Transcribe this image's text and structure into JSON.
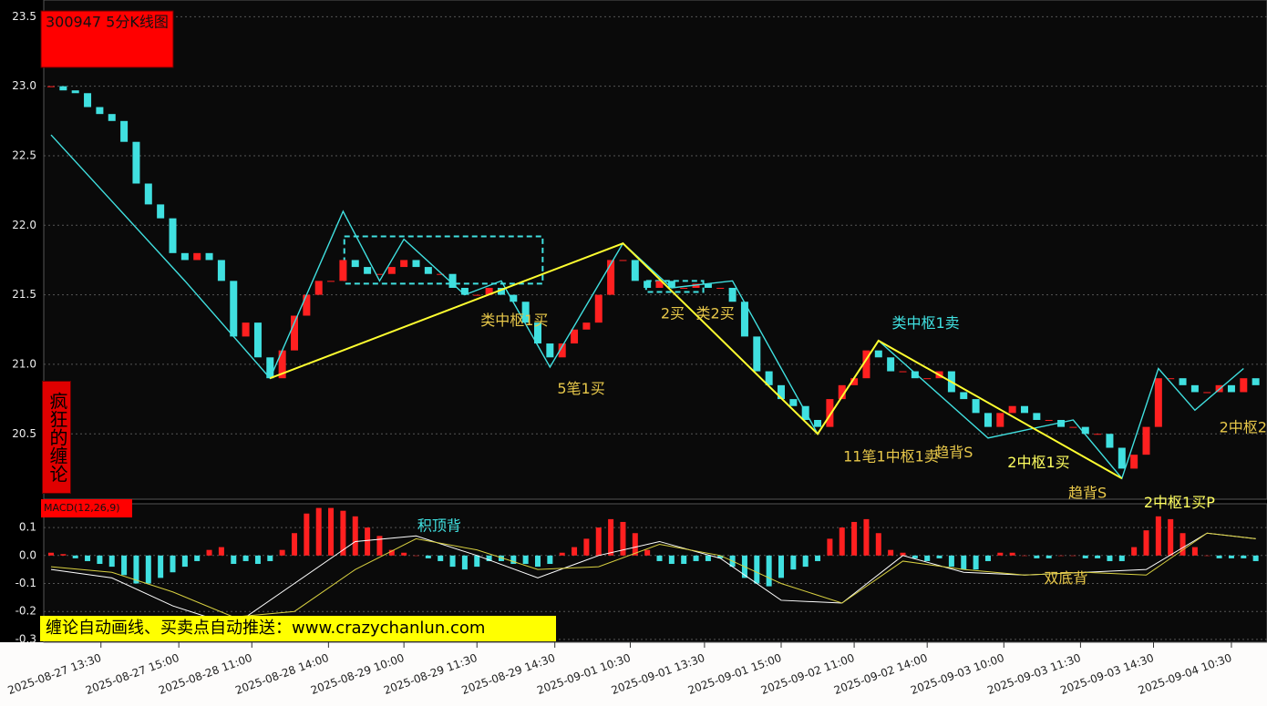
{
  "chart_data": [
    {
      "type": "candlestick",
      "title": "300947 5分K线图",
      "side_label": "疯狂的缠论",
      "up_color": "#ff2020",
      "down_color": "#40e0e0",
      "ylim": [
        20.03,
        23.62
      ],
      "yticks": [
        {
          "value": 20.5,
          "label": "20.5"
        },
        {
          "value": 21,
          "label": "21.0"
        },
        {
          "value": 21.5,
          "label": "21.5"
        },
        {
          "value": 22,
          "label": "22.0"
        },
        {
          "value": 22.5,
          "label": "22.5"
        },
        {
          "value": 23,
          "label": "23.0"
        },
        {
          "value": 23.5,
          "label": "23.5"
        }
      ],
      "grid": true,
      "close": [
        23.0,
        22.97,
        22.95,
        22.85,
        22.8,
        22.75,
        22.6,
        22.3,
        22.15,
        22.05,
        21.8,
        21.75,
        21.8,
        21.75,
        21.6,
        21.2,
        21.3,
        21.05,
        20.9,
        21.1,
        21.35,
        21.5,
        21.6,
        21.6,
        21.75,
        21.7,
        21.65,
        21.65,
        21.7,
        21.75,
        21.7,
        21.65,
        21.65,
        21.55,
        21.5,
        21.5,
        21.55,
        21.5,
        21.45,
        21.3,
        21.15,
        21.05,
        21.15,
        21.25,
        21.3,
        21.5,
        21.75,
        21.75,
        21.6,
        21.55,
        21.6,
        21.55,
        21.55,
        21.58,
        21.55,
        21.55,
        21.45,
        21.2,
        20.95,
        20.85,
        20.75,
        20.7,
        20.6,
        20.55,
        20.75,
        20.85,
        20.9,
        21.1,
        21.05,
        20.95,
        20.95,
        20.9,
        20.9,
        20.95,
        20.8,
        20.75,
        20.65,
        20.55,
        20.65,
        20.7,
        20.65,
        20.6,
        20.6,
        20.55,
        20.55,
        20.5,
        20.5,
        20.4,
        20.25,
        20.35,
        20.55,
        20.9,
        20.9,
        20.85,
        20.8,
        20.8,
        20.85,
        20.8,
        20.9,
        20.85
      ],
      "strokes": [
        {
          "color": "#40e0e0",
          "x": [
            0,
            11,
            18,
            24,
            27,
            29,
            34,
            37,
            41,
            47,
            51,
            56,
            63,
            66,
            68,
            77,
            84,
            88,
            91,
            94,
            98
          ],
          "y": [
            22.65,
            21.6,
            20.9,
            22.1,
            21.6,
            21.9,
            21.5,
            21.6,
            20.98,
            21.87,
            21.55,
            21.6,
            20.5,
            20.9,
            21.17,
            20.47,
            20.6,
            20.18,
            20.97,
            20.67,
            20.97
          ]
        },
        {
          "color": "#ffff30",
          "x": [
            18,
            47,
            63,
            68,
            88
          ],
          "y": [
            20.9,
            21.87,
            20.5,
            21.17,
            20.18
          ]
        }
      ],
      "zones": [
        {
          "x": [
            24.1,
            40.4
          ],
          "y": [
            21.58,
            21.92
          ]
        },
        {
          "x": [
            48.9,
            53.6
          ],
          "y": [
            21.52,
            21.6
          ]
        }
      ],
      "annotations": [
        {
          "text": "类中枢1买",
          "x": 35.3,
          "y": 21.31,
          "color": "#e8c84a"
        },
        {
          "text": "5笔1买",
          "x": 41.6,
          "y": 20.82,
          "color": "#e8c84a"
        },
        {
          "text": "2买",
          "x": 50.1,
          "y": 21.36,
          "color": "#e8c84a"
        },
        {
          "text": "类2买",
          "x": 53,
          "y": 21.36,
          "color": "#e8c84a"
        },
        {
          "text": "类中枢1卖",
          "x": 69.1,
          "y": 21.29,
          "color": "#40e0e0"
        },
        {
          "text": "11笔1中枢1卖",
          "x": 65.1,
          "y": 20.33,
          "color": "#e8c84a"
        },
        {
          "text": "趋背S",
          "x": 72.6,
          "y": 20.36,
          "color": "#e8c84a"
        },
        {
          "text": "2中枢1买",
          "x": 78.6,
          "y": 20.29,
          "color": "#ffff60"
        },
        {
          "text": "趋背S",
          "x": 83.6,
          "y": 20.07,
          "color": "#e8c84a"
        },
        {
          "text": "2中枢1买P",
          "x": 89.8,
          "y": 20.0,
          "color": "#ffff60"
        },
        {
          "text": "2中枢2",
          "x": 96,
          "y": 20.54,
          "color": "#e8c84a"
        }
      ]
    },
    {
      "type": "macd",
      "title": "MACD(12,26,9)",
      "banner": "缠论自动画线、买卖点自动推送：www.crazychanlun.com",
      "ylim": [
        -0.31,
        0.185
      ],
      "yticks": [
        {
          "value": 0.1,
          "label": "0.1"
        },
        {
          "value": 0,
          "label": "0.0"
        },
        {
          "value": -0.1,
          "label": "-0.1"
        },
        {
          "value": -0.2,
          "label": "-0.2"
        },
        {
          "value": -0.3,
          "label": "-0.3"
        }
      ],
      "xticks": [
        {
          "value": 4.1,
          "label": "2025-08-27 13:30"
        },
        {
          "value": 10.5,
          "label": "2025-08-27 15:00"
        },
        {
          "value": 16.5,
          "label": "2025-08-28 11:00"
        },
        {
          "value": 22.8,
          "label": "2025-08-28 14:00"
        },
        {
          "value": 29,
          "label": "2025-08-29 10:00"
        },
        {
          "value": 35,
          "label": "2025-08-29 11:30"
        },
        {
          "value": 41.4,
          "label": "2025-08-29 14:30"
        },
        {
          "value": 47.6,
          "label": "2025-09-01 10:30"
        },
        {
          "value": 53.7,
          "label": "2025-09-01 13:30"
        },
        {
          "value": 60,
          "label": "2025-09-01 15:00"
        },
        {
          "value": 66,
          "label": "2025-09-02 11:00"
        },
        {
          "value": 72,
          "label": "2025-09-02 14:00"
        },
        {
          "value": 78.3,
          "label": "2025-09-03 10:00"
        },
        {
          "value": 84.6,
          "label": "2025-09-03 11:30"
        },
        {
          "value": 90.6,
          "label": "2025-09-03 14:30"
        },
        {
          "value": 97,
          "label": "2025-09-04 10:30"
        }
      ],
      "hist": [
        0.01,
        0.005,
        -0.01,
        -0.02,
        -0.03,
        -0.04,
        -0.07,
        -0.1,
        -0.1,
        -0.08,
        -0.06,
        -0.04,
        -0.02,
        0.02,
        0.03,
        -0.03,
        -0.02,
        -0.03,
        -0.02,
        0.02,
        0.08,
        0.15,
        0.17,
        0.17,
        0.16,
        0.14,
        0.1,
        0.07,
        0.02,
        0.01,
        0,
        -0.01,
        -0.02,
        -0.04,
        -0.05,
        -0.04,
        -0.02,
        -0.02,
        -0.03,
        -0.03,
        -0.04,
        -0.03,
        0.01,
        0.03,
        0.06,
        0.1,
        0.13,
        0.12,
        0.08,
        0.02,
        -0.02,
        -0.03,
        -0.03,
        -0.02,
        -0.02,
        -0.01,
        -0.04,
        -0.08,
        -0.1,
        -0.11,
        -0.08,
        -0.05,
        -0.04,
        -0.02,
        0.06,
        0.1,
        0.12,
        0.13,
        0.08,
        0.02,
        0.01,
        -0.01,
        -0.02,
        -0.01,
        -0.04,
        -0.05,
        -0.05,
        -0.02,
        0.01,
        0.01,
        0,
        -0.01,
        -0.01,
        0,
        0,
        -0.01,
        -0.01,
        -0.02,
        -0.02,
        0.03,
        0.09,
        0.14,
        0.13,
        0.08,
        0.03,
        0,
        -0.01,
        -0.01,
        -0.01,
        -0.02
      ],
      "x": [
        0,
        5,
        10,
        15,
        20,
        25,
        30,
        35,
        40,
        45,
        50,
        55,
        60,
        65,
        70,
        75,
        80,
        85,
        90,
        95,
        99
      ],
      "series": [
        {
          "color": "#ffffff",
          "values": [
            -0.05,
            -0.08,
            -0.18,
            -0.25,
            -0.1,
            0.05,
            0.07,
            0,
            -0.08,
            0,
            0.05,
            -0.01,
            -0.16,
            -0.17,
            0,
            -0.06,
            -0.07,
            -0.06,
            -0.05,
            0.08,
            0.06
          ]
        },
        {
          "color": "#d8d040",
          "values": [
            -0.04,
            -0.06,
            -0.13,
            -0.22,
            -0.2,
            -0.05,
            0.06,
            0.02,
            -0.05,
            -0.04,
            0.04,
            0,
            -0.1,
            -0.17,
            -0.02,
            -0.05,
            -0.07,
            -0.06,
            -0.07,
            0.08,
            0.06
          ]
        }
      ],
      "annotations": [
        {
          "text": "积顶背",
          "x": 30.1,
          "y": 0.103,
          "color": "#40e0e0"
        },
        {
          "text": "双底背",
          "x": 81.6,
          "y": -0.083,
          "color": "#e8c84a"
        }
      ]
    }
  ]
}
